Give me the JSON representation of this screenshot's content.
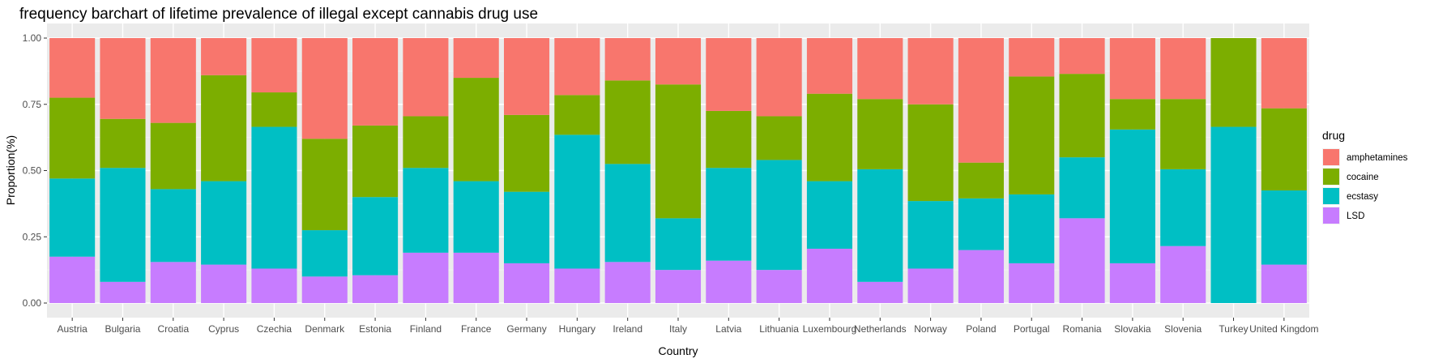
{
  "chart_data": {
    "type": "bar",
    "stacked": true,
    "title": "frequency barchart of lifetime prevalence of illegal except cannabis drug use",
    "xlabel": "Country",
    "ylabel": "Proportion(%)",
    "ylim": [
      0,
      1
    ],
    "yticks": [
      0,
      0.25,
      0.5,
      0.75,
      1
    ],
    "ytick_labels": [
      "0.00",
      "0.25",
      "0.50",
      "0.75",
      "1.00"
    ],
    "grid": true,
    "legend": {
      "title": "drug",
      "position": "right"
    },
    "categories": [
      "Austria",
      "Bulgaria",
      "Croatia",
      "Cyprus",
      "Czechia",
      "Denmark",
      "Estonia",
      "Finland",
      "France",
      "Germany",
      "Hungary",
      "Ireland",
      "Italy",
      "Latvia",
      "Lithuania",
      "Luxembourg",
      "Netherlands",
      "Norway",
      "Poland",
      "Portugal",
      "Romania",
      "Slovakia",
      "Slovenia",
      "Turkey",
      "United Kingdom"
    ],
    "series": [
      {
        "name": "amphetamines",
        "color": "#F8766D",
        "values": [
          0.225,
          0.305,
          0.32,
          0.14,
          0.205,
          0.38,
          0.33,
          0.295,
          0.15,
          0.29,
          0.215,
          0.16,
          0.175,
          0.275,
          0.295,
          0.21,
          0.23,
          0.25,
          0.47,
          0.145,
          0.135,
          0.23,
          0.23,
          0.0,
          0.265
        ]
      },
      {
        "name": "cocaine",
        "color": "#7CAE00",
        "values": [
          0.305,
          0.185,
          0.25,
          0.4,
          0.13,
          0.345,
          0.27,
          0.195,
          0.39,
          0.29,
          0.15,
          0.315,
          0.505,
          0.215,
          0.165,
          0.33,
          0.265,
          0.365,
          0.135,
          0.445,
          0.315,
          0.115,
          0.265,
          0.335,
          0.31
        ]
      },
      {
        "name": "ecstasy",
        "color": "#00BFC4",
        "values": [
          0.295,
          0.43,
          0.275,
          0.315,
          0.535,
          0.175,
          0.295,
          0.32,
          0.27,
          0.27,
          0.505,
          0.37,
          0.195,
          0.35,
          0.415,
          0.255,
          0.425,
          0.255,
          0.195,
          0.26,
          0.23,
          0.505,
          0.29,
          0.665,
          0.28
        ]
      },
      {
        "name": "LSD",
        "color": "#C77CFF",
        "values": [
          0.175,
          0.08,
          0.155,
          0.145,
          0.13,
          0.1,
          0.105,
          0.19,
          0.19,
          0.15,
          0.13,
          0.155,
          0.125,
          0.16,
          0.125,
          0.205,
          0.08,
          0.13,
          0.2,
          0.15,
          0.32,
          0.15,
          0.215,
          0.0,
          0.145
        ]
      }
    ]
  }
}
